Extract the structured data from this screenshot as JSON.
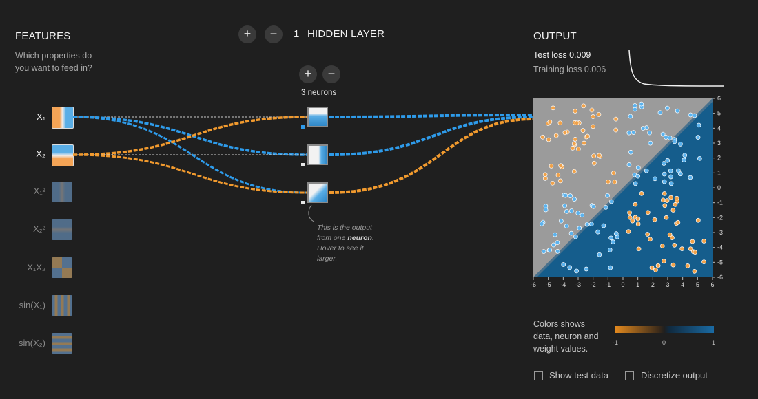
{
  "features": {
    "title": "FEATURES",
    "subtitle_line1": "Which properties do",
    "subtitle_line2": "you want to feed in?",
    "items": [
      {
        "label": "X₁",
        "active": true
      },
      {
        "label": "X₂",
        "active": true
      },
      {
        "label": "X₁²",
        "active": false
      },
      {
        "label": "X₂²",
        "active": false
      },
      {
        "label": "X₁X₂",
        "active": false
      },
      {
        "label": "sin(X₁)",
        "active": false
      },
      {
        "label": "sin(X₂)",
        "active": false
      }
    ]
  },
  "layers": {
    "add": "+",
    "remove": "−",
    "count": "1",
    "title": "HIDDEN LAYER",
    "neurons_label": "3 neurons",
    "note_a": "This is the output",
    "note_b": "from one ",
    "note_bold": "neuron",
    "note_c": ". Hover to see it",
    "note_d": "larger."
  },
  "output": {
    "title": "OUTPUT",
    "test_loss": "Test loss 0.009",
    "training_loss": "Training loss 0.006",
    "y_ticks": [
      "6",
      "5",
      "4",
      "3",
      "2",
      "1",
      "0",
      "-1",
      "-2",
      "-3",
      "-4",
      "-5",
      "-6"
    ],
    "x_ticks": [
      "-6",
      "-5",
      "-4",
      "-3",
      "-2",
      "-1",
      "0",
      "1",
      "2",
      "3",
      "4",
      "5",
      "6"
    ]
  },
  "legend": {
    "text1": "Colors shows",
    "text2": "data, neuron and",
    "text3": "weight values.",
    "min": "-1",
    "mid": "0",
    "max": "1"
  },
  "options": {
    "show_test": "Show test data",
    "discretize": "Discretize output"
  },
  "colors": {
    "blue": "#2e9bea",
    "orange": "#f19a2e",
    "dark_blue": "#0f5a8a",
    "grey": "#9a9a9a"
  }
}
